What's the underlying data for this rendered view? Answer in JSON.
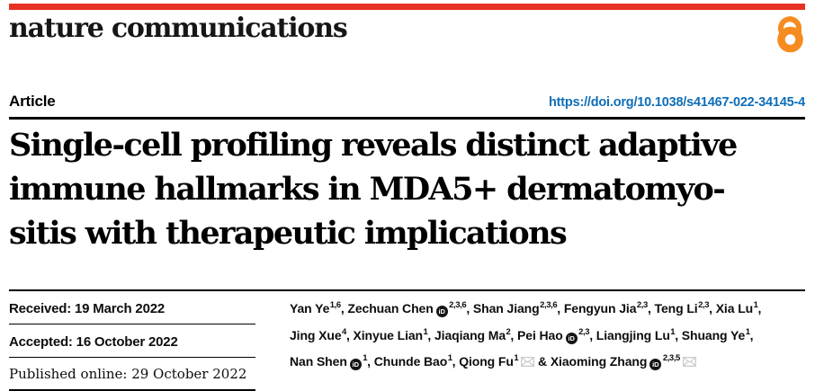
{
  "masthead": {
    "journal_name": "nature communications",
    "brand_bar_color": "#e63323",
    "open_access_color": "#f68b1f"
  },
  "article_row": {
    "label": "Article",
    "doi": "https://doi.org/10.1038/s41467-022-34145-4",
    "doi_color": "#0e6eb8"
  },
  "title": {
    "full": "Single-cell profiling reveals distinct adaptive immune hallmarks in MDA5+ dermatomyositis with therapeutic implications",
    "lines": [
      "Single-cell profiling reveals distinct adaptive",
      "immune hallmarks in MDA5+ dermatomyo-",
      "sitis with therapeutic implications"
    ]
  },
  "history": {
    "received": {
      "label": "Received:",
      "date": "19 March 2022",
      "text": "Received: 19 March 2022"
    },
    "accepted": {
      "label": "Accepted:",
      "date": "16 October 2022",
      "text": "Accepted: 16 October 2022"
    },
    "published": {
      "label": "Published online:",
      "date": "29 October 2022",
      "text": "Published online: 29 October 2022"
    }
  },
  "icons": {
    "orcid_label": "iD",
    "email_icon": "envelope",
    "open_access_icon": "open-padlock"
  },
  "authors": {
    "line_breaks_after": [
      5,
      11
    ],
    "ampersand": " & ",
    "list": [
      {
        "name": "Yan Ye",
        "sup": "1,6",
        "orcid": false,
        "email": false,
        "sep": ", "
      },
      {
        "name": "Zechuan Chen",
        "sup": "2,3,6",
        "orcid": true,
        "email": false,
        "sep": ", "
      },
      {
        "name": "Shan Jiang",
        "sup": "2,3,6",
        "orcid": false,
        "email": false,
        "sep": ", "
      },
      {
        "name": "Fengyun Jia",
        "sup": "2,3",
        "orcid": false,
        "email": false,
        "sep": ", "
      },
      {
        "name": "Teng Li",
        "sup": "2,3",
        "orcid": false,
        "email": false,
        "sep": ", "
      },
      {
        "name": "Xia Lu",
        "sup": "1",
        "orcid": false,
        "email": false,
        "sep": ","
      },
      {
        "name": "Jing Xue",
        "sup": "4",
        "orcid": false,
        "email": false,
        "sep": ", "
      },
      {
        "name": "Xinyue Lian",
        "sup": "1",
        "orcid": false,
        "email": false,
        "sep": ", "
      },
      {
        "name": "Jiaqiang Ma",
        "sup": "2",
        "orcid": false,
        "email": false,
        "sep": ", "
      },
      {
        "name": "Pei Hao",
        "sup": "2,3",
        "orcid": true,
        "email": false,
        "sep": ", "
      },
      {
        "name": "Liangjing Lu",
        "sup": "1",
        "orcid": false,
        "email": false,
        "sep": ", "
      },
      {
        "name": "Shuang Ye",
        "sup": "1",
        "orcid": false,
        "email": false,
        "sep": ","
      },
      {
        "name": "Nan Shen",
        "sup": "1",
        "orcid": true,
        "email": false,
        "sep": ", "
      },
      {
        "name": "Chunde Bao",
        "sup": "1",
        "orcid": false,
        "email": false,
        "sep": ", "
      },
      {
        "name": "Qiong Fu",
        "sup": "1",
        "orcid": false,
        "email": true,
        "sep": " & "
      },
      {
        "name": "Xiaoming Zhang",
        "sup": "2,3,5",
        "orcid": true,
        "email": true,
        "sep": ""
      }
    ]
  }
}
